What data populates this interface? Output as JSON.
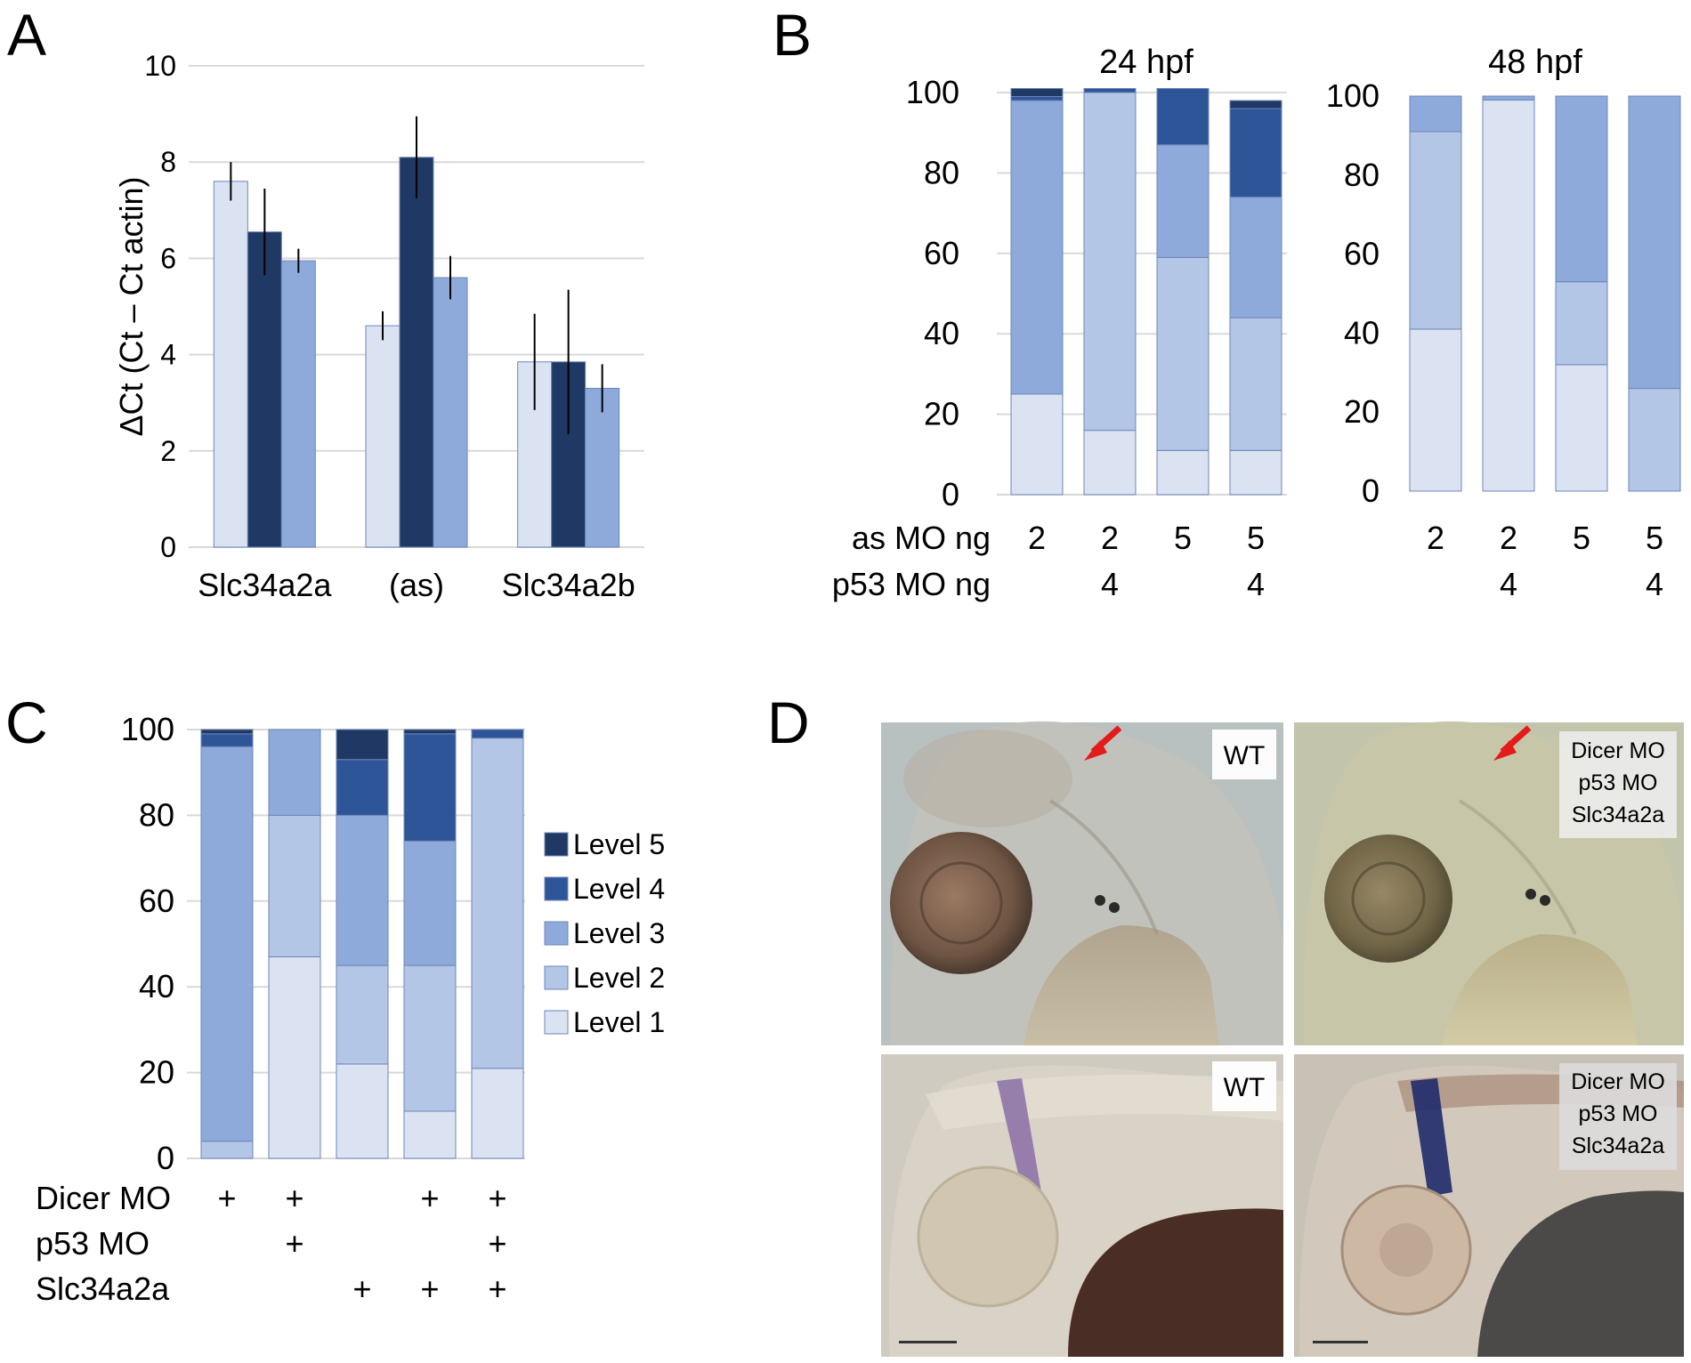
{
  "panels": {
    "A": "A",
    "B": "B",
    "C": "C",
    "D": "D"
  },
  "colors": {
    "level1": "#dbe3f3",
    "level2": "#b4c6e6",
    "level3": "#8eaadb",
    "level4": "#2e5597",
    "level5": "#1f3864",
    "bar_outline": "#6d86b8",
    "grid": "#d9d9d9",
    "arrow": "#e31b1b"
  },
  "chart_data": [
    {
      "panel": "A",
      "type": "bar",
      "ylabel": "ΔCt (Ct – Ct actin)",
      "ylim": [
        0,
        10
      ],
      "yticks": [
        "0",
        "2",
        "4",
        "6",
        "8",
        "10"
      ],
      "grid": true,
      "categories": [
        "Slc34a2a",
        "(as)",
        "Slc34a2b"
      ],
      "series": [
        {
          "color": "level1",
          "values": [
            7.6,
            4.6,
            3.85
          ],
          "errors": [
            0.4,
            0.3,
            1.0
          ]
        },
        {
          "color": "level5",
          "values": [
            6.55,
            8.1,
            3.85
          ],
          "errors": [
            0.9,
            0.85,
            1.5
          ]
        },
        {
          "color": "level3",
          "values": [
            5.95,
            5.6,
            3.3
          ],
          "errors": [
            0.25,
            0.45,
            0.5
          ]
        }
      ]
    },
    {
      "panel": "B",
      "type": "bar",
      "stacked": true,
      "title": "24 hpf",
      "ylim": [
        0,
        100
      ],
      "yticks": [
        "0",
        "20",
        "40",
        "60",
        "80",
        "100"
      ],
      "rows": [
        {
          "label": "as MO ng",
          "values": [
            "2",
            "2",
            "5",
            "5"
          ]
        },
        {
          "label": "p53 MO ng",
          "values": [
            "",
            "4",
            "",
            "4"
          ]
        }
      ],
      "series": [
        {
          "name": "Level 1",
          "values": [
            25,
            16,
            11,
            11
          ]
        },
        {
          "name": "Level 2",
          "values": [
            0,
            84,
            48,
            33
          ]
        },
        {
          "name": "Level 3",
          "values": [
            73,
            0,
            28,
            30
          ]
        },
        {
          "name": "Level 4",
          "values": [
            1,
            1,
            14,
            22
          ]
        },
        {
          "name": "Level 5",
          "values": [
            2,
            0,
            0,
            2
          ]
        }
      ]
    },
    {
      "panel": "B",
      "type": "bar",
      "stacked": true,
      "title": "48 hpf",
      "ylim": [
        0,
        100
      ],
      "yticks": [
        "0",
        "20",
        "40",
        "60",
        "80",
        "100"
      ],
      "rows": [
        {
          "label": "",
          "values": [
            "2",
            "2",
            "5",
            "5"
          ]
        },
        {
          "label": "",
          "values": [
            "",
            "4",
            "",
            "4"
          ]
        }
      ],
      "series": [
        {
          "name": "Level 1",
          "values": [
            41,
            99,
            32,
            0
          ]
        },
        {
          "name": "Level 2",
          "values": [
            50,
            0,
            21,
            26
          ]
        },
        {
          "name": "Level 3",
          "values": [
            9,
            1,
            47,
            74
          ]
        },
        {
          "name": "Level 4",
          "values": [
            0,
            0,
            0,
            0
          ]
        },
        {
          "name": "Level 5",
          "values": [
            0,
            0,
            0,
            0
          ]
        }
      ]
    },
    {
      "panel": "C",
      "type": "bar",
      "stacked": true,
      "ylim": [
        0,
        100
      ],
      "yticks": [
        "0",
        "20",
        "40",
        "60",
        "80",
        "100"
      ],
      "rows": [
        {
          "label": "Dicer MO",
          "values": [
            "+",
            "+",
            "",
            "+",
            "+"
          ]
        },
        {
          "label": "p53 MO",
          "values": [
            "",
            "+",
            "",
            "",
            "+"
          ]
        },
        {
          "label": "Slc34a2a",
          "values": [
            "",
            "",
            "+",
            "+",
            "+"
          ]
        }
      ],
      "legend": {
        "position": "right",
        "entries": [
          "Level 5",
          "Level 4",
          "Level 3",
          "Level 2",
          "Level 1"
        ]
      },
      "series": [
        {
          "name": "Level 1",
          "values": [
            0,
            47,
            22,
            11,
            21
          ]
        },
        {
          "name": "Level 2",
          "values": [
            4,
            33,
            23,
            34,
            77
          ]
        },
        {
          "name": "Level 3",
          "values": [
            92,
            20,
            35,
            29,
            0
          ]
        },
        {
          "name": "Level 4",
          "values": [
            3,
            0,
            13,
            25,
            2
          ]
        },
        {
          "name": "Level 5",
          "values": [
            1,
            0,
            7,
            1,
            0
          ]
        }
      ]
    }
  ],
  "photos": {
    "tl": {
      "tag": [
        "WT"
      ],
      "arrow": true
    },
    "tr": {
      "tag": [
        "Dicer MO",
        "p53 MO",
        "Slc34a2a"
      ],
      "arrow": true
    },
    "bl": {
      "tag": [
        "WT"
      ],
      "arrow": false
    },
    "br": {
      "tag": [
        "Dicer MO",
        "p53 MO",
        "Slc34a2a"
      ],
      "arrow": false
    }
  }
}
